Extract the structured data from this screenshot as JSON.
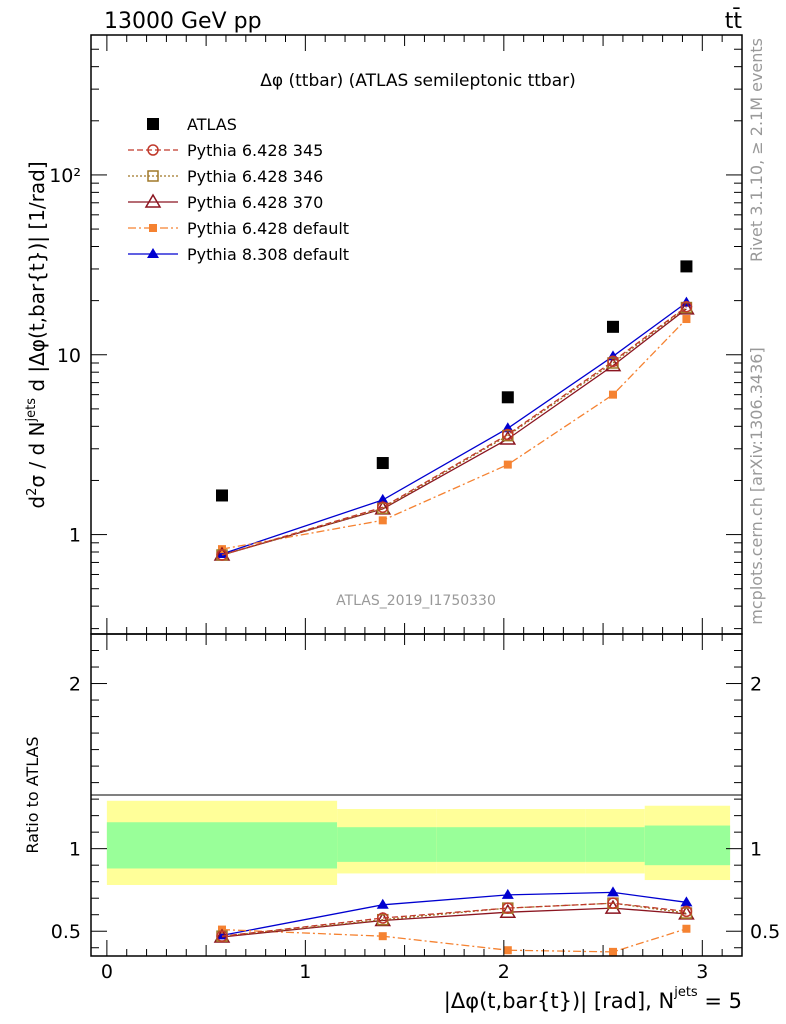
{
  "header": {
    "left": "13000 GeV pp",
    "right": "tt̄"
  },
  "side_text": {
    "rivet": "Rivet 3.1.10, ≥ 2.1M events",
    "mcplots": "mcplots.cern.ch [arXiv:1306.3436]"
  },
  "chart_data": [
    {
      "type": "scatter",
      "title": "Δφ (ttbar) (ATLAS semileptonic ttbar)",
      "watermark": "ATLAS_2019_I1750330",
      "ylabel": "d²σ / d N^jets d |Δφ(t,bar{t})| [1/rad]",
      "yscale": "log",
      "ylim": [
        0.28,
        600
      ],
      "xlim": [
        -0.08,
        3.2
      ],
      "ytick_labels": [
        "1",
        "10",
        "10²"
      ],
      "legend_position": "top-left",
      "x": [
        0.58,
        1.39,
        2.02,
        2.55,
        2.92
      ],
      "series": [
        {
          "name": "ATLAS",
          "values": [
            1.65,
            2.5,
            5.8,
            14.3,
            31.0
          ],
          "color": "#000000",
          "marker": "filled-square",
          "line": "none"
        },
        {
          "name": "Pythia 6.428 345",
          "values": [
            0.77,
            1.42,
            3.6,
            9.2,
            18.5
          ],
          "color": "#c0392b",
          "marker": "open-circle",
          "line": "dashed"
        },
        {
          "name": "Pythia 6.428 346",
          "values": [
            0.77,
            1.4,
            3.55,
            9.0,
            18.3
          ],
          "color": "#a07828",
          "marker": "open-square",
          "line": "dotted"
        },
        {
          "name": "Pythia 6.428 370",
          "values": [
            0.77,
            1.39,
            3.4,
            8.7,
            18.0
          ],
          "color": "#8b1520",
          "marker": "open-triangle",
          "line": "solid"
        },
        {
          "name": "Pythia 6.428 default",
          "values": [
            0.83,
            1.2,
            2.45,
            6.0,
            15.8
          ],
          "color": "#f58231",
          "marker": "filled-square-small",
          "line": "dashdot"
        },
        {
          "name": "Pythia 8.308 default",
          "values": [
            0.78,
            1.56,
            3.9,
            9.8,
            19.5
          ],
          "color": "#0000d0",
          "marker": "filled-triangle",
          "line": "solid"
        }
      ]
    },
    {
      "type": "line",
      "ylabel": "Ratio to ATLAS",
      "xlabel": "|Δφ(t,bar{t})| [rad], N^jets = 5",
      "xlim": [
        -0.08,
        3.2
      ],
      "ylim": [
        0.35,
        2.3
      ],
      "xticks": [
        0,
        1,
        2,
        3
      ],
      "yticks": [
        0.5,
        1,
        2
      ],
      "reference_line": 1,
      "bands": {
        "edges": [
          0,
          1.16,
          1.66,
          2.41,
          2.71,
          3.14
        ],
        "outer_low": [
          0.78,
          0.85,
          0.85,
          0.85,
          0.81,
          0.8
        ],
        "outer_high": [
          1.29,
          1.24,
          1.24,
          1.24,
          1.26,
          1.26
        ],
        "inner_low": [
          0.88,
          0.92,
          0.92,
          0.92,
          0.9,
          0.9
        ],
        "inner_high": [
          1.16,
          1.13,
          1.13,
          1.13,
          1.14,
          1.15
        ],
        "outer_color": "#ffff99",
        "inner_color": "#99ff99"
      },
      "x": [
        0.58,
        1.39,
        2.02,
        2.55,
        2.92
      ],
      "series": [
        {
          "name": "Pythia 6.428 345",
          "values": [
            0.47,
            0.58,
            0.64,
            0.67,
            0.62
          ],
          "color": "#c0392b",
          "marker": "open-circle",
          "line": "dashed"
        },
        {
          "name": "Pythia 6.428 346",
          "values": [
            0.47,
            0.57,
            0.64,
            0.67,
            0.61
          ],
          "color": "#a07828",
          "marker": "open-square",
          "line": "dotted"
        },
        {
          "name": "Pythia 6.428 370",
          "values": [
            0.465,
            0.565,
            0.615,
            0.64,
            0.605
          ],
          "color": "#8b1520",
          "marker": "open-triangle",
          "line": "solid"
        },
        {
          "name": "Pythia 6.428 default",
          "values": [
            0.51,
            0.47,
            0.385,
            0.375,
            0.515
          ],
          "color": "#f58231",
          "marker": "filled-square-small",
          "line": "dashdot"
        },
        {
          "name": "Pythia 8.308 default",
          "values": [
            0.475,
            0.66,
            0.72,
            0.735,
            0.675
          ],
          "color": "#0000d0",
          "marker": "filled-triangle",
          "line": "solid"
        }
      ]
    }
  ]
}
